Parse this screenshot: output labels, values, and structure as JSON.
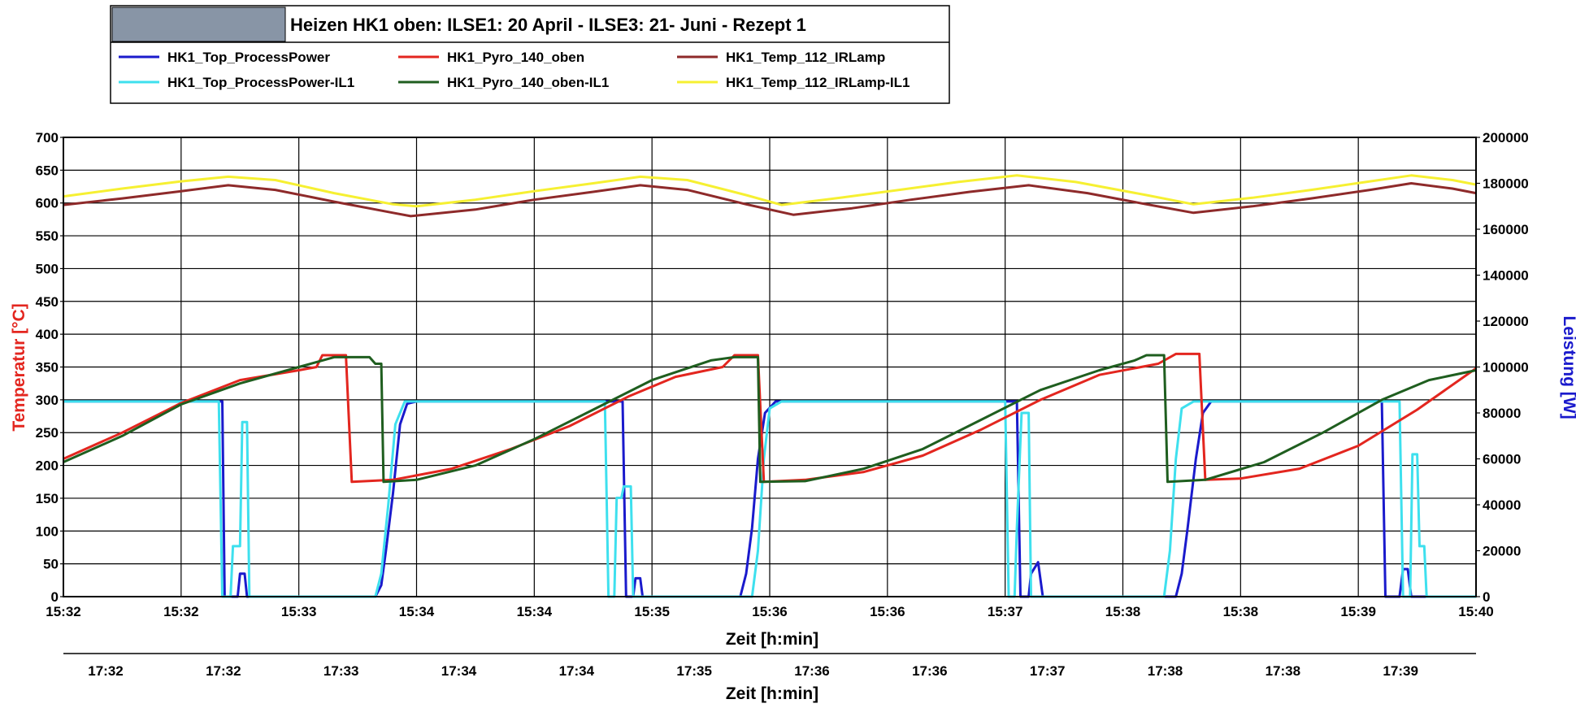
{
  "chart_data": {
    "type": "line",
    "title": "Heizen HK1 oben:  ILSE1: 20 April - ILSE3: 21- Juni - Rezept 1",
    "xlabel": "Zeit [h:min]",
    "xlabel2": "Zeit [h:min]",
    "ylabel_left": "Temperatur [°C]",
    "ylabel_right": "Leistung [W]",
    "ylabel_left_color": "#e3261f",
    "ylabel_right_color": "#1a1acc",
    "ylim_left": [
      0,
      700
    ],
    "yticks_left": [
      0,
      50,
      100,
      150,
      200,
      250,
      300,
      350,
      400,
      450,
      500,
      550,
      600,
      650,
      700
    ],
    "ylim_right": [
      0,
      200000
    ],
    "yticks_right": [
      0,
      20000,
      40000,
      60000,
      80000,
      100000,
      120000,
      140000,
      160000,
      180000,
      200000
    ],
    "xlim_min": [
      0,
      12
    ],
    "x_ticks_top": [
      "15:32",
      "15:32",
      "15:33",
      "15:34",
      "15:34",
      "15:35",
      "15:36",
      "15:36",
      "15:37",
      "15:38",
      "15:38",
      "15:39",
      "15:40"
    ],
    "x_ticks_bottom": [
      "17:32",
      "17:32",
      "17:33",
      "17:34",
      "17:34",
      "17:35",
      "17:36",
      "17:36",
      "17:37",
      "17:38",
      "17:38",
      "17:39"
    ],
    "x_unit": "minutes from chart start",
    "grid": true,
    "legend_position": "top-left",
    "series": [
      {
        "name": "HK1_Top_ProcessPower",
        "color": "#1a1acc",
        "axis": "right",
        "points": [
          [
            0,
            85000
          ],
          [
            1.35,
            85000
          ],
          [
            1.37,
            0
          ],
          [
            1.48,
            0
          ],
          [
            1.5,
            10000
          ],
          [
            1.54,
            10000
          ],
          [
            1.56,
            0
          ],
          [
            2.65,
            0
          ],
          [
            2.7,
            5000
          ],
          [
            2.74,
            20000
          ],
          [
            2.8,
            45000
          ],
          [
            2.86,
            75000
          ],
          [
            2.92,
            84000
          ],
          [
            3.0,
            85000
          ],
          [
            4.75,
            85000
          ],
          [
            4.78,
            0
          ],
          [
            4.84,
            0
          ],
          [
            4.86,
            8000
          ],
          [
            4.9,
            8000
          ],
          [
            4.92,
            0
          ],
          [
            5.75,
            0
          ],
          [
            5.8,
            10000
          ],
          [
            5.85,
            30000
          ],
          [
            5.9,
            60000
          ],
          [
            5.96,
            80000
          ],
          [
            6.05,
            85000
          ],
          [
            8.1,
            85000
          ],
          [
            8.13,
            0
          ],
          [
            8.2,
            0
          ],
          [
            8.22,
            10000
          ],
          [
            8.28,
            15000
          ],
          [
            8.32,
            0
          ],
          [
            9.45,
            0
          ],
          [
            9.5,
            10000
          ],
          [
            9.55,
            30000
          ],
          [
            9.62,
            60000
          ],
          [
            9.68,
            80000
          ],
          [
            9.75,
            85000
          ],
          [
            11.2,
            85000
          ],
          [
            11.23,
            0
          ],
          [
            11.35,
            0
          ],
          [
            11.38,
            12000
          ],
          [
            11.42,
            12000
          ],
          [
            11.45,
            0
          ],
          [
            12,
            0
          ]
        ]
      },
      {
        "name": "HK1_Top_ProcessPower-IL1",
        "color": "#3ee0ee",
        "axis": "right",
        "points": [
          [
            0,
            85000
          ],
          [
            1.32,
            85000
          ],
          [
            1.35,
            0
          ],
          [
            1.42,
            0
          ],
          [
            1.44,
            22000
          ],
          [
            1.5,
            22000
          ],
          [
            1.52,
            76000
          ],
          [
            1.56,
            76000
          ],
          [
            1.58,
            0
          ],
          [
            2.65,
            0
          ],
          [
            2.7,
            10000
          ],
          [
            2.76,
            40000
          ],
          [
            2.82,
            75000
          ],
          [
            2.9,
            85000
          ],
          [
            4.6,
            85000
          ],
          [
            4.63,
            0
          ],
          [
            4.68,
            0
          ],
          [
            4.7,
            43000
          ],
          [
            4.74,
            43000
          ],
          [
            4.76,
            48000
          ],
          [
            4.82,
            48000
          ],
          [
            4.84,
            0
          ],
          [
            5.85,
            0
          ],
          [
            5.9,
            20000
          ],
          [
            5.95,
            60000
          ],
          [
            6.0,
            82000
          ],
          [
            6.1,
            85000
          ],
          [
            8.0,
            85000
          ],
          [
            8.03,
            0
          ],
          [
            8.08,
            0
          ],
          [
            8.1,
            30000
          ],
          [
            8.14,
            80000
          ],
          [
            8.2,
            80000
          ],
          [
            8.22,
            0
          ],
          [
            9.35,
            0
          ],
          [
            9.4,
            20000
          ],
          [
            9.45,
            60000
          ],
          [
            9.5,
            82000
          ],
          [
            9.6,
            85000
          ],
          [
            11.35,
            85000
          ],
          [
            11.38,
            0
          ],
          [
            11.44,
            0
          ],
          [
            11.46,
            62000
          ],
          [
            11.5,
            62000
          ],
          [
            11.52,
            22000
          ],
          [
            11.56,
            22000
          ],
          [
            11.58,
            0
          ],
          [
            12,
            0
          ]
        ]
      },
      {
        "name": "HK1_Pyro_140_oben",
        "color": "#e3261f",
        "axis": "left",
        "points": [
          [
            0,
            210
          ],
          [
            0.5,
            250
          ],
          [
            1.0,
            295
          ],
          [
            1.5,
            330
          ],
          [
            2.0,
            345
          ],
          [
            2.15,
            350
          ],
          [
            2.2,
            368
          ],
          [
            2.4,
            368
          ],
          [
            2.45,
            175
          ],
          [
            2.8,
            178
          ],
          [
            3.3,
            195
          ],
          [
            3.8,
            225
          ],
          [
            4.3,
            260
          ],
          [
            4.8,
            305
          ],
          [
            5.2,
            335
          ],
          [
            5.6,
            350
          ],
          [
            5.7,
            368
          ],
          [
            5.9,
            368
          ],
          [
            5.95,
            175
          ],
          [
            6.3,
            178
          ],
          [
            6.8,
            190
          ],
          [
            7.3,
            215
          ],
          [
            7.8,
            255
          ],
          [
            8.3,
            300
          ],
          [
            8.8,
            338
          ],
          [
            9.3,
            355
          ],
          [
            9.45,
            370
          ],
          [
            9.65,
            370
          ],
          [
            9.7,
            178
          ],
          [
            10.0,
            180
          ],
          [
            10.5,
            195
          ],
          [
            11.0,
            230
          ],
          [
            11.5,
            285
          ],
          [
            12,
            348
          ]
        ]
      },
      {
        "name": "HK1_Pyro_140_oben-IL1",
        "color": "#1f5e1f",
        "axis": "left",
        "points": [
          [
            0,
            205
          ],
          [
            0.5,
            245
          ],
          [
            1.0,
            293
          ],
          [
            1.5,
            325
          ],
          [
            2.0,
            350
          ],
          [
            2.3,
            365
          ],
          [
            2.6,
            365
          ],
          [
            2.65,
            355
          ],
          [
            2.7,
            355
          ],
          [
            2.72,
            175
          ],
          [
            3.0,
            178
          ],
          [
            3.5,
            200
          ],
          [
            4.0,
            240
          ],
          [
            4.5,
            285
          ],
          [
            5.0,
            330
          ],
          [
            5.5,
            360
          ],
          [
            5.7,
            365
          ],
          [
            5.9,
            365
          ],
          [
            5.92,
            175
          ],
          [
            6.3,
            176
          ],
          [
            6.8,
            195
          ],
          [
            7.3,
            225
          ],
          [
            7.8,
            270
          ],
          [
            8.3,
            315
          ],
          [
            8.8,
            345
          ],
          [
            9.1,
            360
          ],
          [
            9.2,
            368
          ],
          [
            9.35,
            368
          ],
          [
            9.38,
            175
          ],
          [
            9.7,
            178
          ],
          [
            10.2,
            205
          ],
          [
            10.7,
            250
          ],
          [
            11.2,
            300
          ],
          [
            11.6,
            330
          ],
          [
            12,
            345
          ]
        ]
      },
      {
        "name": "HK1_Temp_112_IRLamp",
        "color": "#8e2a2a",
        "axis": "left",
        "points": [
          [
            0,
            597
          ],
          [
            0.5,
            607
          ],
          [
            1.0,
            618
          ],
          [
            1.4,
            627
          ],
          [
            1.8,
            620
          ],
          [
            2.3,
            602
          ],
          [
            2.8,
            585
          ],
          [
            2.95,
            580
          ],
          [
            3.5,
            590
          ],
          [
            4.0,
            605
          ],
          [
            4.5,
            617
          ],
          [
            4.9,
            627
          ],
          [
            5.3,
            620
          ],
          [
            5.8,
            598
          ],
          [
            6.2,
            582
          ],
          [
            6.7,
            592
          ],
          [
            7.2,
            605
          ],
          [
            7.7,
            617
          ],
          [
            8.2,
            627
          ],
          [
            8.7,
            615
          ],
          [
            9.2,
            598
          ],
          [
            9.6,
            585
          ],
          [
            10.1,
            595
          ],
          [
            10.6,
            607
          ],
          [
            11.1,
            620
          ],
          [
            11.45,
            630
          ],
          [
            11.8,
            622
          ],
          [
            12,
            615
          ]
        ]
      },
      {
        "name": "HK1_Temp_112_IRLamp-IL1",
        "color": "#f6f032",
        "axis": "left",
        "points": [
          [
            0,
            610
          ],
          [
            0.5,
            622
          ],
          [
            1.0,
            633
          ],
          [
            1.4,
            640
          ],
          [
            1.8,
            635
          ],
          [
            2.3,
            615
          ],
          [
            2.8,
            598
          ],
          [
            3.0,
            595
          ],
          [
            3.5,
            605
          ],
          [
            4.0,
            618
          ],
          [
            4.5,
            630
          ],
          [
            4.9,
            640
          ],
          [
            5.3,
            635
          ],
          [
            5.8,
            612
          ],
          [
            6.1,
            597
          ],
          [
            6.6,
            608
          ],
          [
            7.1,
            620
          ],
          [
            7.6,
            632
          ],
          [
            8.1,
            642
          ],
          [
            8.6,
            632
          ],
          [
            9.2,
            612
          ],
          [
            9.6,
            598
          ],
          [
            10.1,
            608
          ],
          [
            10.6,
            620
          ],
          [
            11.1,
            633
          ],
          [
            11.45,
            642
          ],
          [
            11.8,
            635
          ],
          [
            12,
            628
          ]
        ]
      }
    ]
  }
}
